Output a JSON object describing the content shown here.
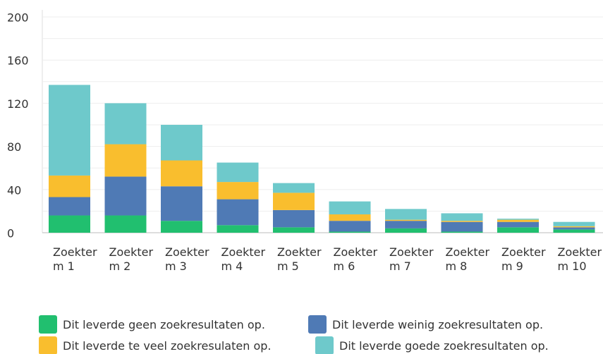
{
  "chart_data": {
    "type": "stacked_bar",
    "categories": [
      "Zoekterm 1",
      "Zoekterm 2",
      "Zoekterm 3",
      "Zoekterm 4",
      "Zoekterm 5",
      "Zoekterm 6",
      "Zoekterm 7",
      "Zoekterm 8",
      "Zoekterm 9",
      "Zoekterm 10"
    ],
    "series": [
      {
        "name": "Dit leverde geen zoekresultaten op.",
        "color": "#21bf6f",
        "values": [
          16,
          16,
          11,
          7,
          5,
          1,
          4,
          1,
          5,
          3
        ]
      },
      {
        "name": "Dit leverde weinig zoekresultaten op.",
        "color": "#4f7ab5",
        "values": [
          17,
          36,
          32,
          24,
          16,
          10,
          7,
          9,
          5,
          2
        ]
      },
      {
        "name": "Dit leverde te veel zoekresulaten op.",
        "color": "#f9be2e",
        "values": [
          20,
          30,
          24,
          16,
          16,
          6,
          1,
          1,
          2,
          1
        ]
      },
      {
        "name": "Dit leverde goede zoekresultaten op.",
        "color": "#6ec9cb",
        "values": [
          84,
          38,
          33,
          18,
          9,
          12,
          10,
          7,
          1,
          4
        ]
      }
    ],
    "ylim": [
      0,
      200
    ],
    "yticks": [
      0,
      40,
      80,
      120,
      160,
      200
    ],
    "minor_yticks": [
      20,
      60,
      100,
      140,
      180
    ],
    "grid": true,
    "legend": "bottom"
  }
}
